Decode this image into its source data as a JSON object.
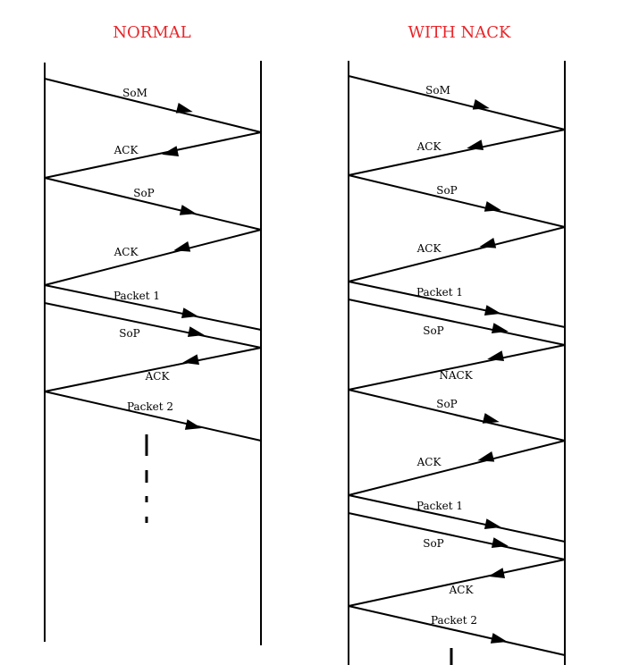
{
  "panels": [
    {
      "title": "NORMAL",
      "messages": [
        {
          "label": "SoM",
          "dir": "right"
        },
        {
          "label": "ACK",
          "dir": "left"
        },
        {
          "label": "SoP",
          "dir": "right"
        },
        {
          "label": "ACK",
          "dir": "left"
        },
        {
          "label": "Packet 1",
          "dir": "right"
        },
        {
          "label": "SoP",
          "dir": "right"
        },
        {
          "label": "ACK",
          "dir": "left"
        },
        {
          "label": "Packet 2",
          "dir": "right"
        }
      ]
    },
    {
      "title": "WITH NACK",
      "messages": [
        {
          "label": "SoM",
          "dir": "right"
        },
        {
          "label": "ACK",
          "dir": "left"
        },
        {
          "label": "SoP",
          "dir": "right"
        },
        {
          "label": "ACK",
          "dir": "left"
        },
        {
          "label": "Packet 1",
          "dir": "right"
        },
        {
          "label": "SoP",
          "dir": "right"
        },
        {
          "label": "NACK",
          "dir": "left"
        },
        {
          "label": "SoP",
          "dir": "right"
        },
        {
          "label": "ACK",
          "dir": "left"
        },
        {
          "label": "Packet 1",
          "dir": "right"
        },
        {
          "label": "SoP",
          "dir": "right"
        },
        {
          "label": "ACK",
          "dir": "left"
        },
        {
          "label": "Packet 2",
          "dir": "right"
        }
      ]
    }
  ]
}
